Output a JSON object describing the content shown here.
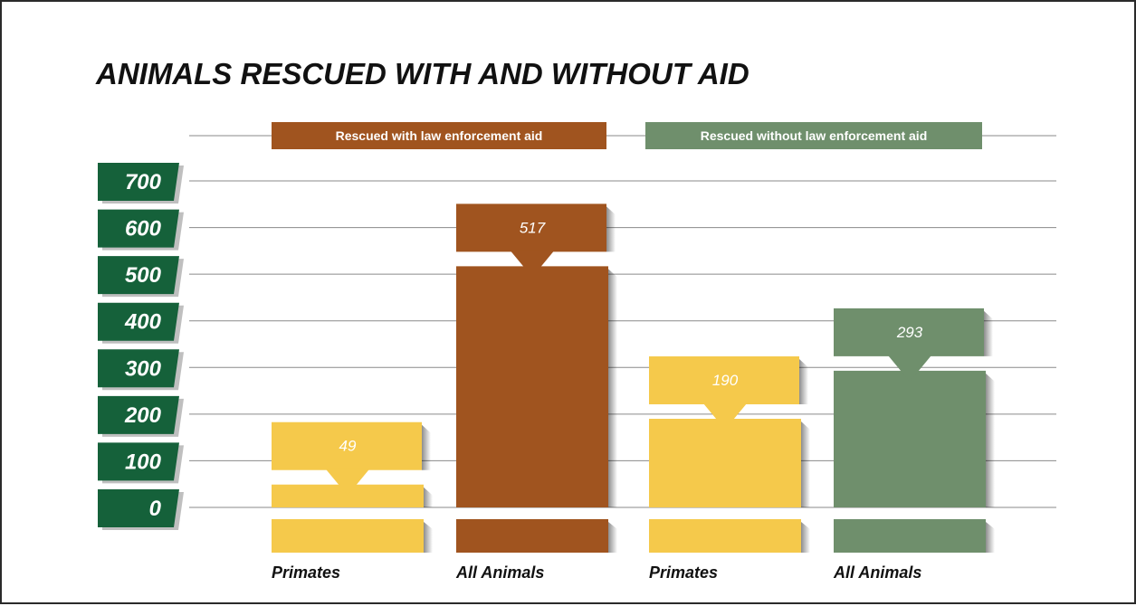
{
  "chart_data": {
    "type": "bar",
    "title": "ANIMALS RESCUED WITH AND WITHOUT AID",
    "yticks": [
      "700",
      "600",
      "500",
      "400",
      "300",
      "200",
      "100",
      "0"
    ],
    "ylim": [
      0,
      700
    ],
    "grid": true,
    "legend_position": "top",
    "groups": [
      {
        "name": "Rescued with law enforcement aid",
        "color": "#a0541f",
        "bars": [
          {
            "category": "Primates",
            "value": 49,
            "label": "49",
            "color": "#f5c94b"
          },
          {
            "category": "All Animals",
            "value": 517,
            "label": "517",
            "color": "#a0541f"
          }
        ]
      },
      {
        "name": "Rescued without law enforcement aid",
        "color": "#6f8f6c",
        "bars": [
          {
            "category": "Primates",
            "value": 190,
            "label": "190",
            "color": "#f5c94b"
          },
          {
            "category": "All Animals",
            "value": 293,
            "label": "293",
            "color": "#6f8f6c"
          }
        ]
      }
    ],
    "colors": {
      "tick_box": "#15613a",
      "grid": "#8a8a8a",
      "primates": "#f5c94b"
    }
  }
}
